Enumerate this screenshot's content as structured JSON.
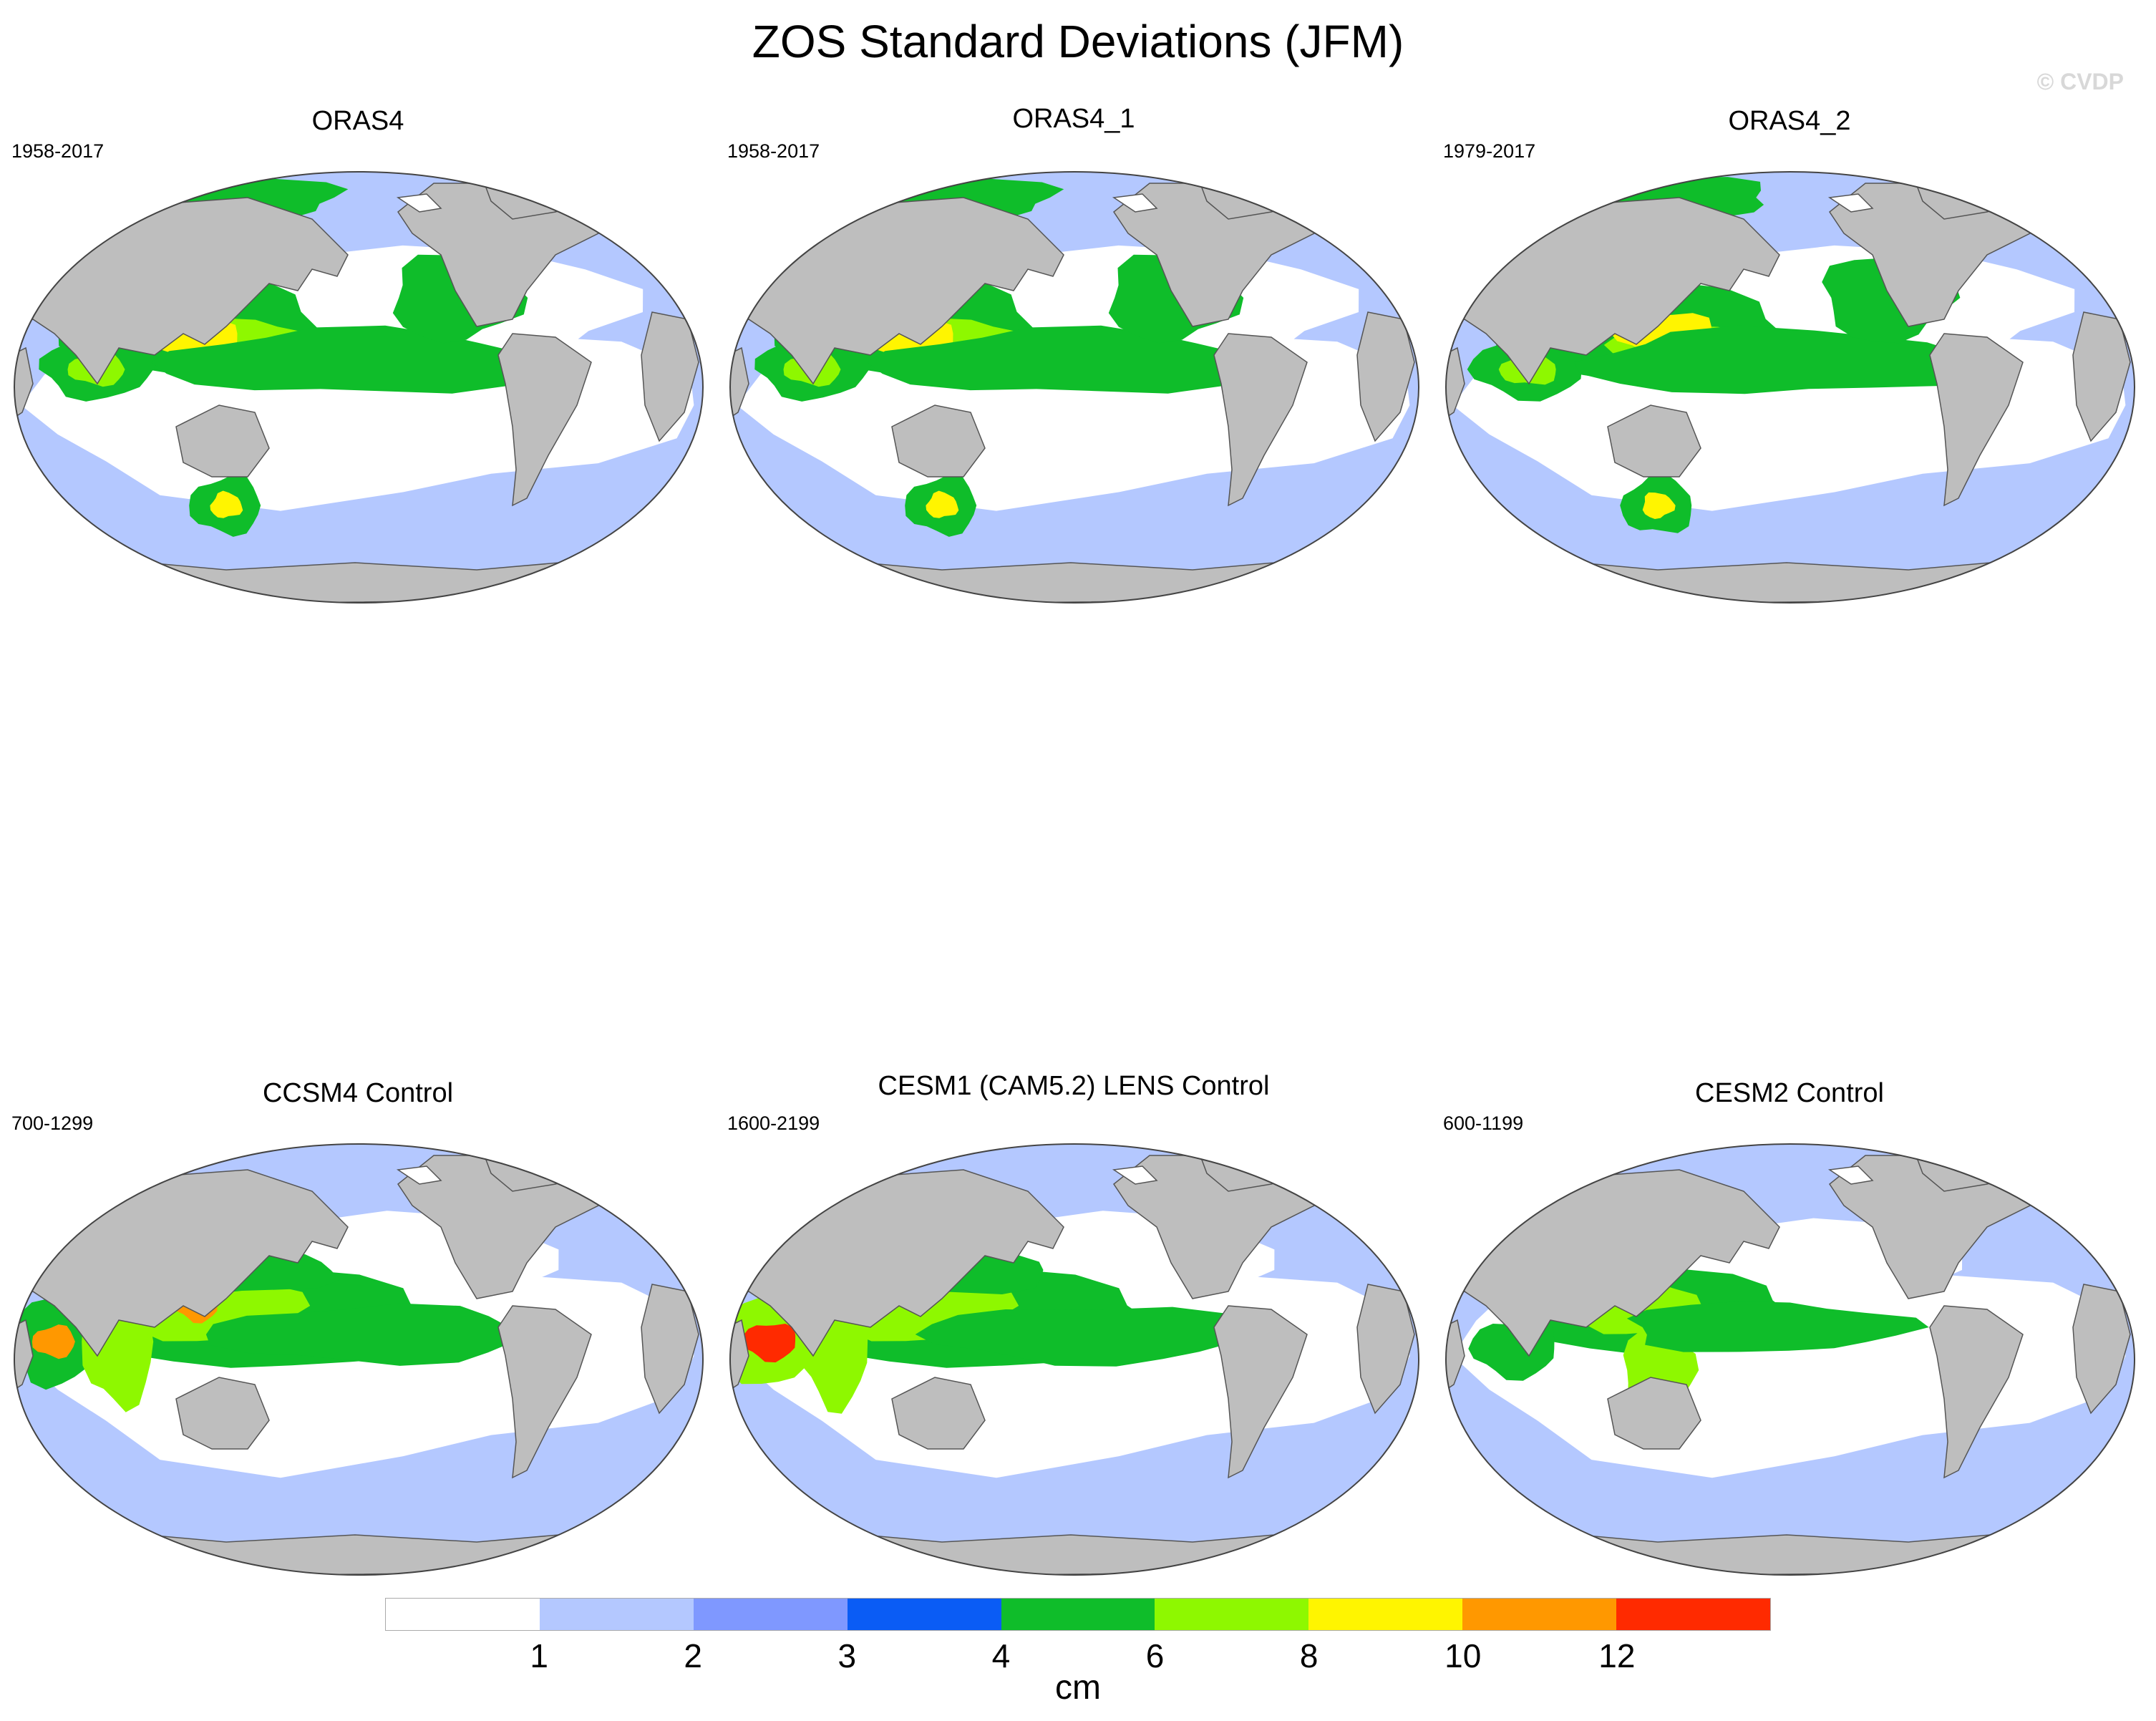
{
  "title": "ZOS Standard Deviations (JFM)",
  "credit": "© CVDP",
  "colors": {
    "land": "#bebebe",
    "coast": "#555555",
    "ice": "#ffffff",
    "bins": [
      "#ffffff",
      "#b4c8ff",
      "#7f98ff",
      "#0a5cf5",
      "#0fbd2a",
      "#8ef800",
      "#fff500",
      "#ff9800",
      "#ff2a00"
    ]
  },
  "panels": [
    {
      "title": "ORAS4",
      "period": "1958-2017",
      "variant": "ocean_reanalysis"
    },
    {
      "title": "ORAS4_1",
      "period": "1958-2017",
      "variant": "ocean_reanalysis"
    },
    {
      "title": "ORAS4_2",
      "period": "1979-2017",
      "variant": "ocean_reanalysis_strong"
    },
    {
      "title": "CCSM4 Control",
      "period": "700-1299",
      "variant": "model_ccsm4"
    },
    {
      "title": "CESM1 (CAM5.2) LENS Control",
      "period": "1600-2199",
      "variant": "model_cesm1"
    },
    {
      "title": "CESM2 Control",
      "period": "600-1199",
      "variant": "model_cesm2"
    }
  ],
  "legend": {
    "units": "cm",
    "tick_labels": [
      "1",
      "2",
      "3",
      "4",
      "6",
      "8",
      "10",
      "12"
    ],
    "bin_edges": [
      0,
      1,
      2,
      3,
      4,
      6,
      8,
      10,
      12
    ]
  }
}
